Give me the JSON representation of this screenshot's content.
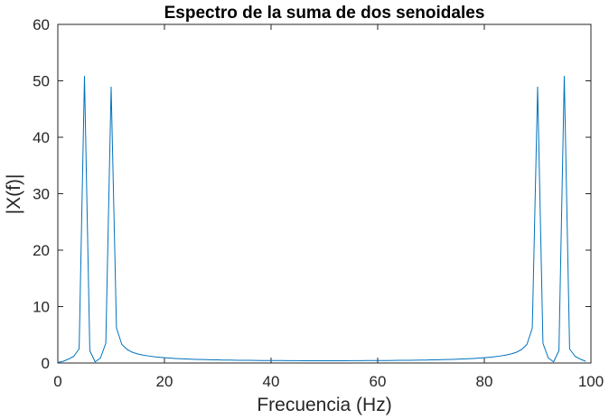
{
  "chart_data": {
    "type": "line",
    "title": "Espectro de la suma de dos senoidales",
    "xlabel": "Frecuencia (Hz)",
    "ylabel": "|X(f)|",
    "xlim": [
      0,
      100
    ],
    "ylim": [
      0,
      60
    ],
    "x_ticks": [
      0,
      20,
      40,
      60,
      80,
      100
    ],
    "y_ticks": [
      0,
      10,
      20,
      30,
      40,
      50,
      60
    ],
    "grid": false,
    "box": true,
    "colors": {
      "line": "#0072bd",
      "axes": "#262626",
      "background": "#ffffff"
    },
    "series": [
      {
        "x": [
          0,
          1,
          2,
          3,
          4,
          5,
          6,
          7,
          8,
          9,
          10,
          11,
          12,
          13,
          14,
          15,
          16,
          17,
          18,
          19,
          20,
          21,
          22,
          23,
          24,
          25,
          26,
          27,
          28,
          29,
          30,
          31,
          32,
          33,
          34,
          35,
          36,
          37,
          38,
          39,
          40,
          41,
          42,
          43,
          44,
          45,
          46,
          47,
          48,
          49,
          50,
          51,
          52,
          53,
          54,
          55,
          56,
          57,
          58,
          59,
          60,
          61,
          62,
          63,
          64,
          65,
          66,
          67,
          68,
          69,
          70,
          71,
          72,
          73,
          74,
          75,
          76,
          77,
          78,
          79,
          80,
          81,
          82,
          83,
          84,
          85,
          86,
          87,
          88,
          89,
          90,
          91,
          92,
          93,
          94,
          95,
          96,
          97,
          98,
          99
        ],
        "values": [
          0.1,
          0.3,
          0.7,
          1.2,
          2.5,
          50.8,
          2.2,
          0.2,
          0.9,
          3.5,
          48.9,
          6.2,
          3.3,
          2.4,
          1.9,
          1.6,
          1.4,
          1.25,
          1.12,
          1.02,
          0.94,
          0.87,
          0.81,
          0.76,
          0.72,
          0.68,
          0.65,
          0.62,
          0.6,
          0.57,
          0.55,
          0.53,
          0.52,
          0.5,
          0.49,
          0.48,
          0.47,
          0.46,
          0.45,
          0.44,
          0.44,
          0.43,
          0.43,
          0.42,
          0.42,
          0.42,
          0.41,
          0.41,
          0.41,
          0.41,
          0.41,
          0.41,
          0.41,
          0.41,
          0.41,
          0.42,
          0.42,
          0.42,
          0.43,
          0.43,
          0.44,
          0.44,
          0.45,
          0.46,
          0.47,
          0.48,
          0.49,
          0.5,
          0.52,
          0.53,
          0.55,
          0.57,
          0.6,
          0.62,
          0.65,
          0.68,
          0.72,
          0.76,
          0.81,
          0.87,
          0.94,
          1.02,
          1.12,
          1.25,
          1.4,
          1.6,
          1.9,
          2.4,
          3.3,
          6.2,
          48.9,
          3.5,
          0.9,
          0.2,
          2.2,
          50.8,
          2.5,
          1.2,
          0.7,
          0.3
        ]
      }
    ]
  }
}
